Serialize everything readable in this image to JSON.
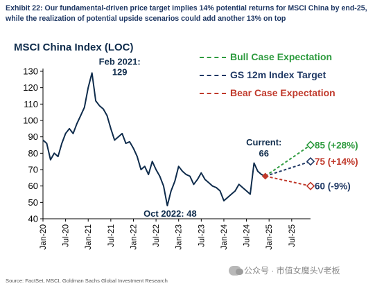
{
  "exhibit": {
    "title_line1": "Exhibit 22: Our fundamental-driven price target implies 14% potential returns for MSCI China by end-25,",
    "title_line2": "while the realization of potential upside scenarios could add another 13% on top"
  },
  "source_note": "Source: FactSet, MSCI, Goldman Sachs Global Investment Research",
  "watermark": {
    "text": "公众号 · 市值女魔头V老板",
    "icon": "wechat-icon"
  },
  "colors": {
    "history": "#0f2c4c",
    "bull": "#2e9b3f",
    "base": "#1f3864",
    "bear": "#c0392b",
    "axis": "#000000"
  },
  "chart_data": {
    "type": "line",
    "title": "MSCI China Index (LOC)",
    "xlabel": "",
    "ylabel": "",
    "ylim": [
      40,
      130
    ],
    "yticks": [
      40,
      50,
      60,
      70,
      80,
      90,
      100,
      110,
      120,
      130
    ],
    "xlim": [
      "2020-01",
      "2025-12"
    ],
    "xticks": [
      "Jan-20",
      "Jul-20",
      "Jan-21",
      "Jul-21",
      "Jan-22",
      "Jul-22",
      "Jan-23",
      "Jul-23",
      "Jan-24",
      "Jul-24",
      "Jan-25",
      "Jul-25"
    ],
    "grid": false,
    "legend_position": "top-right",
    "series": [
      {
        "role": "history",
        "x": [
          "2020-01",
          "2020-02",
          "2020-03",
          "2020-04",
          "2020-05",
          "2020-06",
          "2020-07",
          "2020-08",
          "2020-09",
          "2020-10",
          "2020-11",
          "2020-12",
          "2021-01",
          "2021-02",
          "2021-03",
          "2021-04",
          "2021-05",
          "2021-06",
          "2021-07",
          "2021-08",
          "2021-09",
          "2021-10",
          "2021-11",
          "2021-12",
          "2022-01",
          "2022-02",
          "2022-03",
          "2022-04",
          "2022-05",
          "2022-06",
          "2022-07",
          "2022-08",
          "2022-09",
          "2022-10",
          "2022-11",
          "2022-12",
          "2023-01",
          "2023-02",
          "2023-03",
          "2023-04",
          "2023-05",
          "2023-06",
          "2023-07",
          "2023-08",
          "2023-09",
          "2023-10",
          "2023-11",
          "2023-12",
          "2024-01",
          "2024-02",
          "2024-03",
          "2024-04",
          "2024-05",
          "2024-06",
          "2024-07",
          "2024-08",
          "2024-09",
          "2024-10",
          "2024-11",
          "2024-12"
        ],
        "values": [
          88,
          86,
          76,
          80,
          78,
          86,
          92,
          95,
          92,
          98,
          103,
          108,
          120,
          129,
          112,
          109,
          107,
          103,
          95,
          88,
          90,
          92,
          86,
          87,
          83,
          78,
          70,
          72,
          67,
          75,
          70,
          66,
          60,
          48,
          57,
          63,
          72,
          69,
          67,
          66,
          61,
          64,
          68,
          64,
          62,
          60,
          59,
          57,
          51,
          53,
          55,
          57,
          61,
          59,
          57,
          55,
          74,
          69,
          67,
          66
        ]
      },
      {
        "role": "projection",
        "name": "Bull Case Expectation",
        "x": [
          "2024-12",
          "2025-12"
        ],
        "values": [
          66,
          85
        ]
      },
      {
        "role": "projection",
        "name": "GS 12m Index Target",
        "x": [
          "2024-12",
          "2025-12"
        ],
        "values": [
          66,
          75
        ]
      },
      {
        "role": "projection",
        "name": "Bear Case Expectation",
        "x": [
          "2024-12",
          "2025-12"
        ],
        "values": [
          66,
          60
        ]
      }
    ],
    "end_labels": [
      "85 (+28%)",
      "75 (+14%)",
      "60 (-9%)"
    ],
    "annotations": [
      {
        "text_line1": "Feb 2021:",
        "text_line2": "129",
        "x": "2021-02",
        "y": 129
      },
      {
        "text_line1": "Oct 2022: 48",
        "text_line2": "",
        "x": "2022-10",
        "y": 48
      },
      {
        "text_line1": "Current:",
        "text_line2": "66",
        "x": "2024-12",
        "y": 66
      }
    ]
  }
}
